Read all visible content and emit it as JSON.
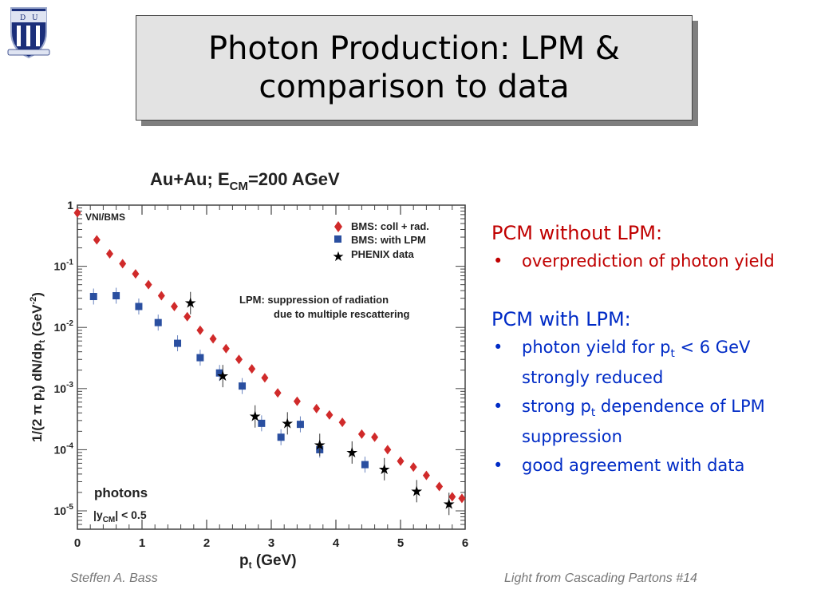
{
  "title": {
    "line1": "Photon Production: LPM &",
    "line2": "comparison to data"
  },
  "logo": {
    "icon": "duke-shield-icon"
  },
  "colors": {
    "red": "#c00000",
    "blue": "#002bc6",
    "bms_coll": "#d02a2a",
    "bms_lpm": "#2a4fa0",
    "phenix": "#000000"
  },
  "chart_data": {
    "type": "scatter",
    "title_main": "Au+Au; E",
    "title_sub": "CM",
    "title_end": "=200 AGeV",
    "ylabel": "1/(2 π p",
    "ylabel_sub": "t",
    "ylabel_mid": ") dN/dp",
    "ylabel_sub2": "t",
    "ylabel_end": " (GeV",
    "ylabel_sup": "-2",
    "ylabel_close": ")",
    "xlabel_main": "p",
    "xlabel_sub": "t",
    "xlabel_end": " (GeV)",
    "x_ticks": [
      "0",
      "1",
      "2",
      "3",
      "4",
      "5",
      "6"
    ],
    "y_ticks": [
      {
        "base": "1",
        "exp": ""
      },
      {
        "base": "10",
        "exp": "-1"
      },
      {
        "base": "10",
        "exp": "-2"
      },
      {
        "base": "10",
        "exp": "-3"
      },
      {
        "base": "10",
        "exp": "-4"
      },
      {
        "base": "10",
        "exp": "-5"
      }
    ],
    "xlim": [
      0,
      6
    ],
    "ylim_log10": [
      -5.3,
      0
    ],
    "log_y": true,
    "corner_label": "VNI/BMS",
    "annotation_line1": "LPM: suppression of radiation",
    "annotation_line2": "due to multiple rescattering",
    "photons_label": "photons",
    "rapidity_pre": "|y",
    "rapidity_sub": "CM",
    "rapidity_post": "| < 0.5",
    "legend_position": "top-right",
    "series": [
      {
        "name": "BMS: coll + rad.",
        "marker": "diamond",
        "x": [
          0.0,
          0.3,
          0.5,
          0.7,
          0.9,
          1.1,
          1.3,
          1.5,
          1.7,
          1.9,
          2.1,
          2.3,
          2.5,
          2.7,
          2.9,
          3.1,
          3.4,
          3.7,
          3.9,
          4.1,
          4.4,
          4.6,
          4.8,
          5.0,
          5.2,
          5.4,
          5.6,
          5.8,
          5.95
        ],
        "y": [
          0.75,
          0.27,
          0.16,
          0.11,
          0.075,
          0.05,
          0.033,
          0.022,
          0.015,
          0.009,
          0.0065,
          0.0045,
          0.003,
          0.0021,
          0.0015,
          0.00085,
          0.00062,
          0.00047,
          0.00037,
          0.00028,
          0.00018,
          0.00016,
          0.0001,
          6.5e-05,
          5.2e-05,
          3.8e-05,
          2.5e-05,
          1.7e-05,
          1.6e-05
        ]
      },
      {
        "name": "BMS: with LPM",
        "marker": "square",
        "x": [
          0.25,
          0.6,
          0.95,
          1.25,
          1.55,
          1.9,
          2.2,
          2.55,
          2.85,
          3.15,
          3.45,
          3.75,
          4.45
        ],
        "y": [
          0.032,
          0.033,
          0.022,
          0.012,
          0.0055,
          0.0032,
          0.0018,
          0.0011,
          0.00027,
          0.00016,
          0.00026,
          0.0001,
          5.7e-05
        ]
      },
      {
        "name": "PHENIX data",
        "marker": "star",
        "x": [
          1.75,
          2.25,
          2.75,
          3.25,
          3.75,
          4.25,
          4.75,
          5.25,
          5.75
        ],
        "y": [
          0.025,
          0.0016,
          0.00035,
          0.00027,
          0.00012,
          9e-05,
          4.8e-05,
          2.1e-05,
          1.3e-05
        ]
      }
    ]
  },
  "right": {
    "heading1": "PCM without LPM:",
    "bullets1": [
      {
        "text": "overprediction of photon yield"
      }
    ],
    "heading2": "PCM with LPM:",
    "b1_pre": "photon yield for p",
    "b1_sub": "t",
    "b1_post": " < 6 GeV strongly reduced",
    "b2_pre": "strong p",
    "b2_sub": "t",
    "b2_post": " dependence of LPM suppression",
    "b3": "good agreement with data"
  },
  "footer": {
    "left": "Steffen A. Bass",
    "right": "Light from Cascading Partons  #14"
  }
}
